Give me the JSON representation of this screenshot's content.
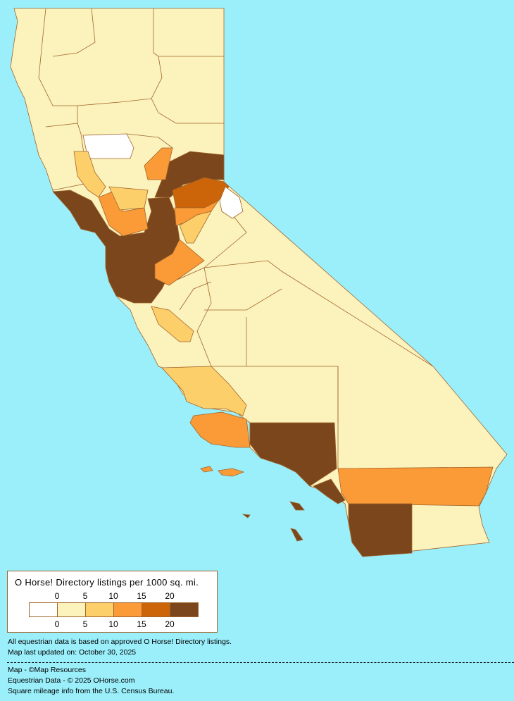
{
  "map": {
    "colors": {
      "background": "#9AEFFB",
      "border": "#A0652A",
      "bin_0": "#FFFFFF",
      "bin_0_5": "#FCF2BC",
      "bin_5_10": "#FDCF6A",
      "bin_10_15": "#FB9B37",
      "bin_15_20": "#CC6409",
      "bin_20_plus": "#7B461C"
    }
  },
  "legend": {
    "title": "O Horse! Directory listings per 1000 sq. mi.",
    "top_ticks": [
      "0",
      "5",
      "10",
      "15",
      "20"
    ],
    "bottom_ticks": [
      "0",
      "5",
      "10",
      "15",
      "20"
    ],
    "swatches": [
      "#FFFFFF",
      "#FCF2BC",
      "#FDCF6A",
      "#FB9B37",
      "#CC6409",
      "#7B461C"
    ]
  },
  "notes": {
    "line1": "All equestrian data is based on approved O Horse! Directory listings.",
    "line2": "Map last updated on: October 30, 2025"
  },
  "credits": {
    "line1": "Map - ©Map Resources",
    "line2": "Equestrian Data - © 2025 OHorse.com",
    "line3": "Square mileage info from the U.S. Census Bureau."
  }
}
